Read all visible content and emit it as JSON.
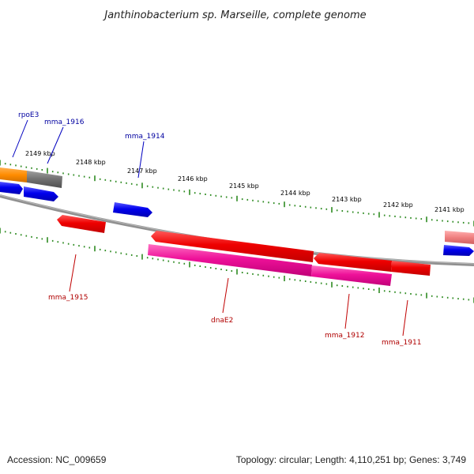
{
  "title": "Janthinobacterium sp. Marseille, complete genome",
  "accession": "Accession: NC_009659",
  "summary": "Topology: circular; Length: 4,110,251 bp; Genes: 3,749",
  "colors": {
    "backbone": "#808080",
    "ticks": "#2e8b22",
    "forward_label": "#0000a0",
    "reverse_label": "#b00000",
    "blue_gene": "#0000ee",
    "red_gene": "#ee0000",
    "magenta_gene": "#ee1199",
    "orange_gene": "#ff8c00",
    "gray_gene": "#707070",
    "pink_gene": "#f08080"
  },
  "tick_labels": [
    "2149 kbp",
    "2148 kbp",
    "2147 kbp",
    "2146 kbp",
    "2145 kbp",
    "2144 kbp",
    "2143 kbp",
    "2142 kbp",
    "2141 kbp"
  ],
  "labels_forward": [
    "rpoE3",
    "mma_1916",
    "mma_1914"
  ],
  "labels_reverse": [
    "mma_1915",
    "dnaE2",
    "mma_1912",
    "mma_1911"
  ]
}
